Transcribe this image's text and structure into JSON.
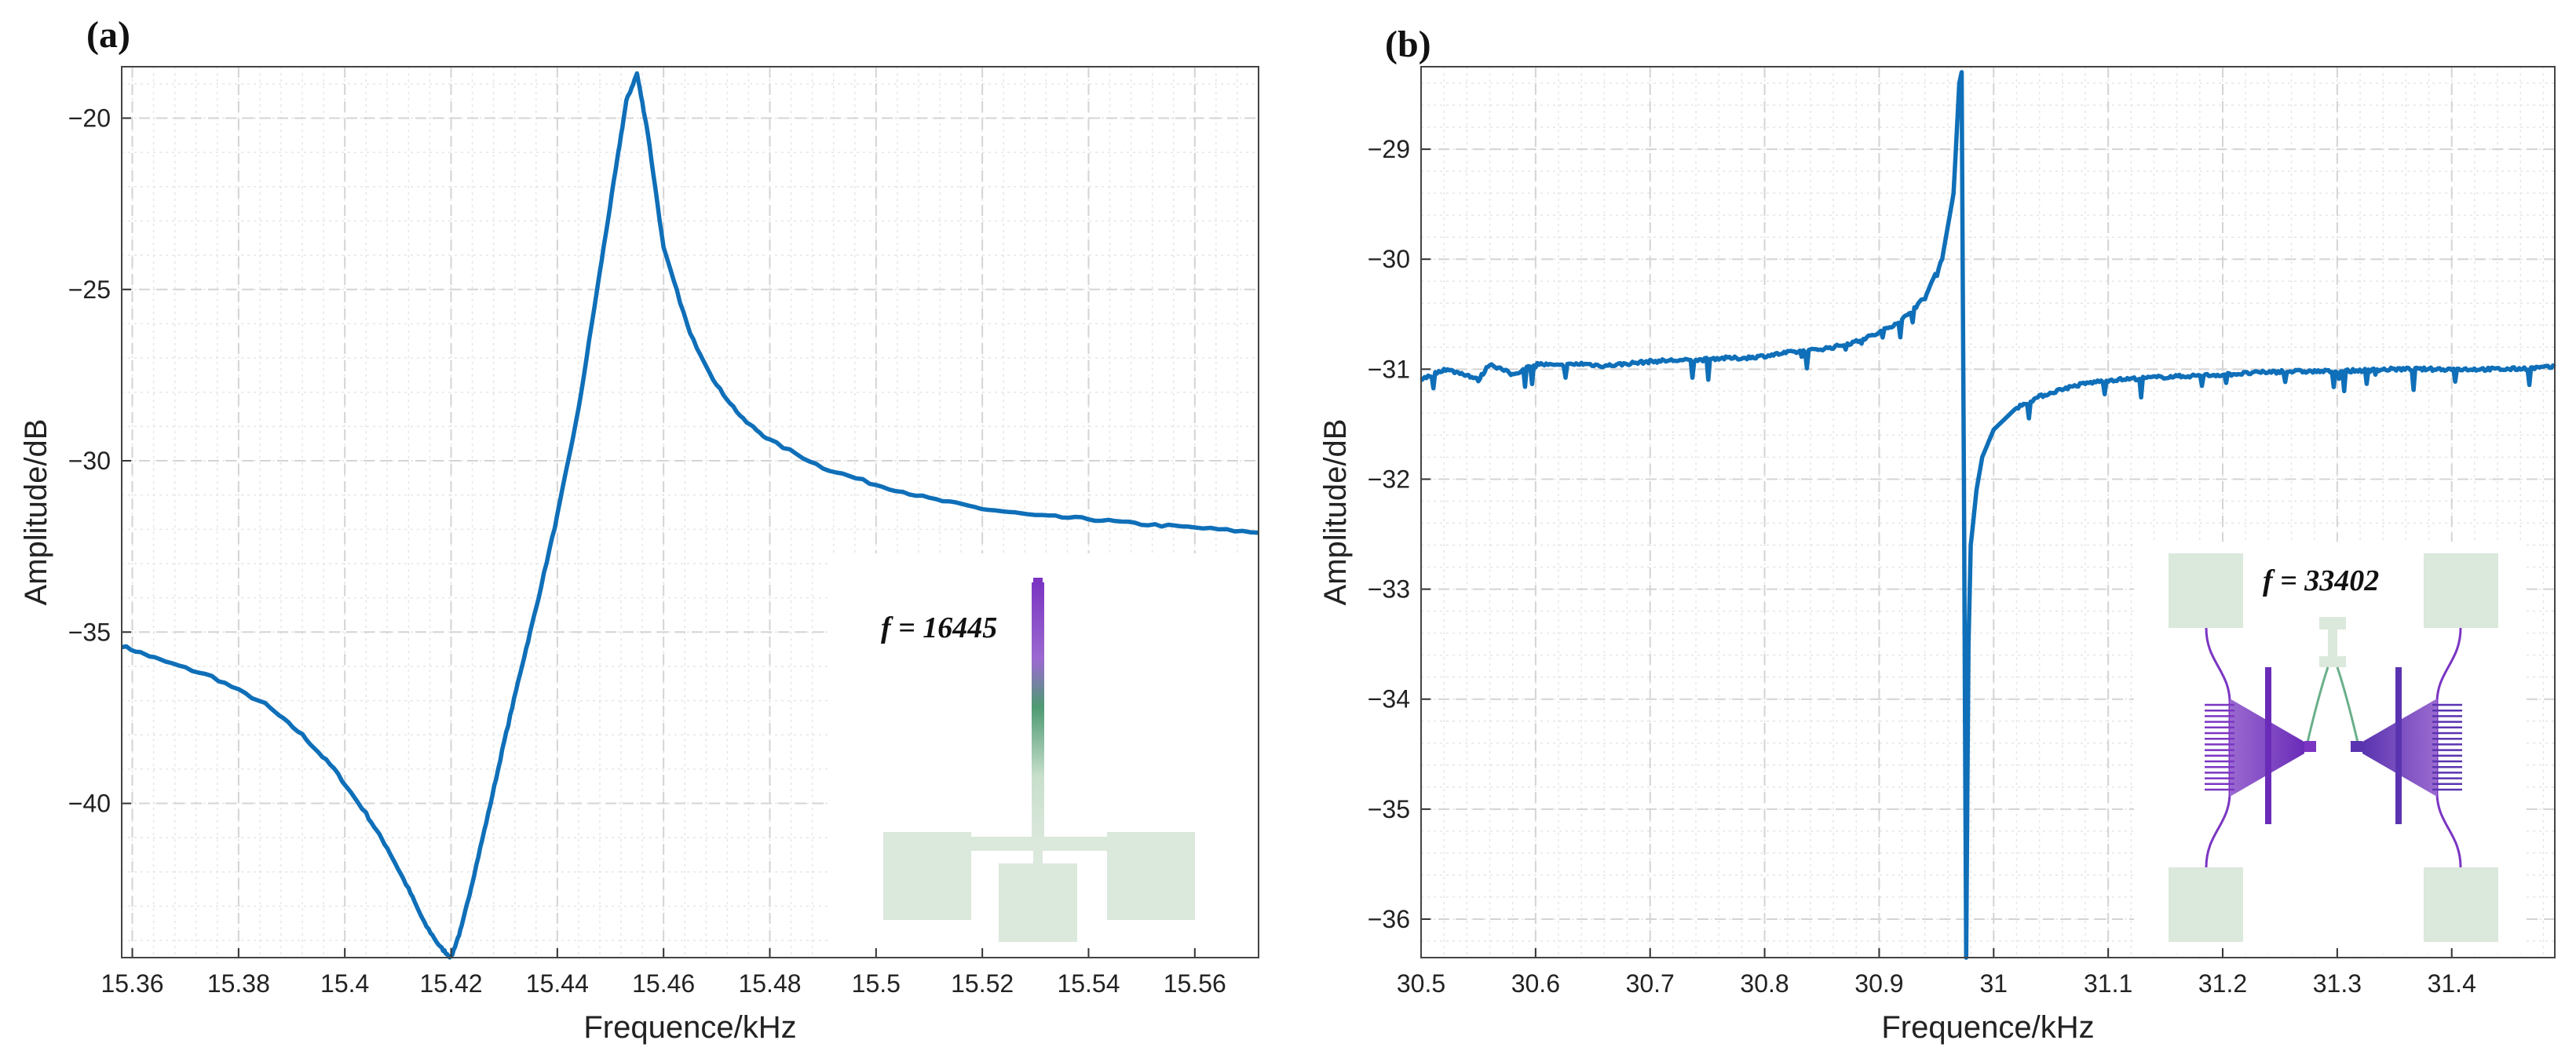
{
  "colors": {
    "series": "#0f6fb8",
    "grid_major": "#d4d4d4",
    "grid_minor": "#e6e6e6",
    "pad": "#dbe8dc",
    "purple": "#7b35c2",
    "green": "#4d9a72"
  },
  "chart_data": [
    {
      "panel_label": "(a)",
      "type": "line",
      "title": "",
      "xlabel": "Frequence/kHz",
      "ylabel": "Amplitude/dB",
      "xlim": [
        15.358,
        15.572
      ],
      "ylim": [
        -44.5,
        -18.5
      ],
      "xticks": [
        15.36,
        15.38,
        15.4,
        15.42,
        15.44,
        15.46,
        15.48,
        15.5,
        15.52,
        15.54,
        15.56
      ],
      "xtick_labels": [
        "15.36",
        "15.38",
        "15.4",
        "15.42",
        "15.44",
        "15.46",
        "15.48",
        "15.5",
        "15.52",
        "15.54",
        "15.56"
      ],
      "yticks": [
        -40,
        -35,
        -30,
        -25,
        -20
      ],
      "ytick_labels": [
        "−40",
        "−35",
        "−30",
        "−25",
        "−20"
      ],
      "grid": true,
      "series": [
        {
          "name": "response",
          "x": [
            15.358,
            15.365,
            15.375,
            15.385,
            15.392,
            15.398,
            15.404,
            15.408,
            15.412,
            15.415,
            15.418,
            15.42,
            15.422,
            15.424,
            15.427,
            15.43,
            15.433,
            15.436,
            15.44,
            15.444,
            15.448,
            15.451,
            15.453,
            15.455,
            15.457,
            15.46,
            15.465,
            15.47,
            15.475,
            15.48,
            15.49,
            15.5,
            15.51,
            15.52,
            15.53,
            15.54,
            15.55,
            15.56,
            15.572
          ],
          "values": [
            -35.4,
            -35.8,
            -36.3,
            -37.1,
            -38.0,
            -39.0,
            -40.3,
            -41.3,
            -42.5,
            -43.5,
            -44.2,
            -44.5,
            -43.6,
            -42.3,
            -40.3,
            -38.2,
            -36.2,
            -34.3,
            -31.6,
            -28.5,
            -24.5,
            -21.5,
            -19.5,
            -18.7,
            -20.4,
            -23.8,
            -26.3,
            -27.8,
            -28.8,
            -29.4,
            -30.2,
            -30.7,
            -31.1,
            -31.4,
            -31.6,
            -31.7,
            -31.85,
            -31.95,
            -32.1
          ]
        }
      ],
      "inset": {
        "label": "f = 16445"
      }
    },
    {
      "panel_label": "(b)",
      "type": "line",
      "title": "",
      "xlabel": "Frequence/kHz",
      "ylabel": "Amplitude/dB",
      "xlim": [
        30.5,
        31.49
      ],
      "ylim": [
        -36.35,
        -28.25
      ],
      "xticks": [
        30.5,
        30.6,
        30.7,
        30.8,
        30.9,
        31,
        31.1,
        31.2,
        31.3,
        31.4
      ],
      "xtick_labels": [
        "30.5",
        "30.6",
        "30.7",
        "30.8",
        "30.9",
        "31",
        "31.1",
        "31.2",
        "31.3",
        "31.4"
      ],
      "yticks": [
        -36,
        -35,
        -34,
        -33,
        -32,
        -31,
        -30,
        -29
      ],
      "ytick_labels": [
        "−36",
        "−35",
        "−34",
        "−33",
        "−32",
        "−31",
        "−30",
        "−29"
      ],
      "grid": true,
      "series": [
        {
          "name": "response",
          "x": [
            30.5,
            30.52,
            30.54,
            30.55,
            30.56,
            30.58,
            30.6,
            30.62,
            30.64,
            30.66,
            30.68,
            30.7,
            30.72,
            30.74,
            30.76,
            30.78,
            30.8,
            30.82,
            30.84,
            30.86,
            30.88,
            30.9,
            30.92,
            30.94,
            30.955,
            30.965,
            30.97,
            30.972,
            30.974,
            30.976,
            30.978,
            30.98,
            30.985,
            30.99,
            31.0,
            31.02,
            31.04,
            31.06,
            31.08,
            31.1,
            31.15,
            31.2,
            31.25,
            31.3,
            31.35,
            31.4,
            31.45,
            31.49
          ],
          "values": [
            -31.1,
            -31.0,
            -31.05,
            -31.1,
            -30.95,
            -31.05,
            -30.95,
            -30.97,
            -30.95,
            -30.97,
            -30.95,
            -30.93,
            -30.92,
            -30.92,
            -30.9,
            -30.9,
            -30.88,
            -30.85,
            -30.83,
            -30.8,
            -30.75,
            -30.67,
            -30.55,
            -30.35,
            -30.0,
            -29.4,
            -28.4,
            -28.3,
            -32.0,
            -36.35,
            -33.5,
            -32.6,
            -32.1,
            -31.8,
            -31.55,
            -31.35,
            -31.25,
            -31.18,
            -31.13,
            -31.1,
            -31.07,
            -31.05,
            -31.02,
            -31.02,
            -31.0,
            -31.0,
            -31.0,
            -30.98
          ]
        }
      ],
      "inset": {
        "label": "f = 33402"
      }
    }
  ]
}
